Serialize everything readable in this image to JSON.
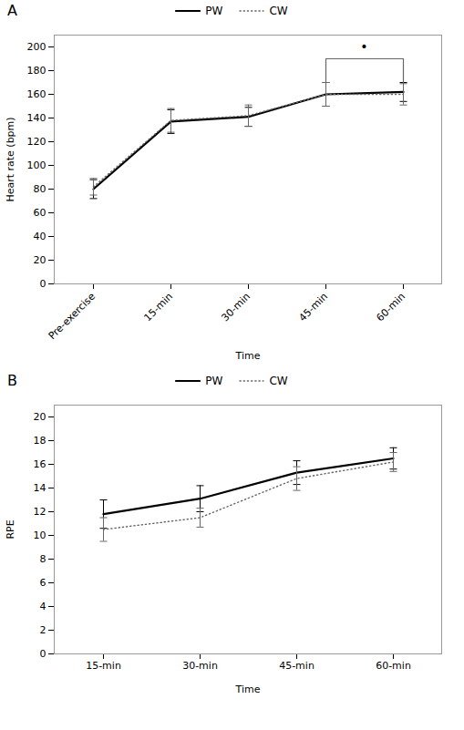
{
  "chart_data": [
    {
      "type": "line",
      "title": "A",
      "categories": [
        "Pre-exercise",
        "15-min",
        "30-min",
        "45-min",
        "60-min"
      ],
      "series": [
        {
          "name": "PW",
          "color": "#000000",
          "line_style": "solid",
          "values": [
            80,
            137,
            141,
            160,
            162
          ],
          "errors": [
            8,
            10,
            8,
            10,
            8
          ]
        },
        {
          "name": "CW",
          "color": "#666666",
          "line_style": "dotted",
          "values": [
            82,
            138,
            142,
            160,
            160
          ],
          "errors": [
            7,
            10,
            9,
            10,
            9
          ]
        }
      ],
      "xlabel": "Time",
      "ylabel": "Heart rate (bpm)",
      "ylim": [
        0,
        210
      ],
      "yticks": [
        0,
        20,
        40,
        60,
        80,
        100,
        120,
        140,
        160,
        180,
        200
      ],
      "grid": false,
      "legend": "top",
      "annotations": [
        {
          "text": "•",
          "x_from": "45-min",
          "x_to": "60-min",
          "y": 196,
          "bracket_y": 190,
          "bracket_bottom": 170,
          "color": "#666666"
        }
      ]
    },
    {
      "type": "line",
      "title": "B",
      "categories": [
        "15-min",
        "30-min",
        "45-min",
        "60-min"
      ],
      "series": [
        {
          "name": "PW",
          "color": "#000000",
          "line_style": "solid",
          "values": [
            11.8,
            13.1,
            15.3,
            16.5
          ],
          "errors": [
            1.2,
            1.1,
            1.0,
            0.9
          ]
        },
        {
          "name": "CW",
          "color": "#666666",
          "line_style": "dotted",
          "values": [
            10.5,
            11.5,
            14.8,
            16.2
          ],
          "errors": [
            1.0,
            0.8,
            1.0,
            0.8
          ]
        }
      ],
      "xlabel": "Time",
      "ylabel": "RPE",
      "ylim": [
        0,
        21
      ],
      "yticks": [
        0,
        2,
        4,
        6,
        8,
        10,
        12,
        14,
        16,
        18,
        20
      ],
      "grid": false,
      "legend": "top"
    }
  ]
}
